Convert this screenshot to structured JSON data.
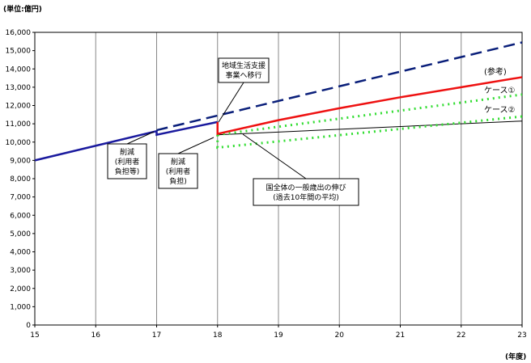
{
  "chart_data": {
    "type": "line",
    "unit_label": "(単位:億円)",
    "xunit_label": "(年度)",
    "x_ticks": [
      "15",
      "16",
      "17",
      "18",
      "19",
      "20",
      "21",
      "22",
      "23"
    ],
    "y_ticks": [
      "0",
      "1,000",
      "2,000",
      "3,000",
      "4,000",
      "5,000",
      "6,000",
      "7,000",
      "8,000",
      "9,000",
      "10,000",
      "11,000",
      "12,000",
      "13,000",
      "14,000",
      "15,000",
      "16,000"
    ],
    "ylim": [
      0,
      16000
    ],
    "xlim": [
      15,
      23
    ],
    "grid": "vertical lines at each year",
    "colors": {
      "actual": "#1a1a9e",
      "reference": "#0a1f7a",
      "sankou": "#ee1111",
      "case1": "#33dd33",
      "case2": "#33dd33",
      "general": "#000000"
    },
    "series": [
      {
        "key": "actual",
        "x": [
          15,
          17,
          17,
          18
        ],
        "y": [
          9000,
          10600,
          10400,
          11100
        ]
      },
      {
        "key": "reference",
        "x": [
          17,
          23
        ],
        "y": [
          10650,
          15450
        ]
      },
      {
        "key": "sankou",
        "name": "(参考)",
        "x": [
          18,
          18,
          19,
          20,
          21,
          22,
          23
        ],
        "y": [
          11100,
          10450,
          11200,
          11850,
          12450,
          13000,
          13550
        ]
      },
      {
        "key": "case1",
        "name": "ケース①",
        "x": [
          18,
          23
        ],
        "y": [
          10400,
          12600
        ]
      },
      {
        "key": "case2",
        "name": "ケース②",
        "x": [
          18,
          18,
          23
        ],
        "y": [
          10400,
          9700,
          11400
        ]
      },
      {
        "key": "general",
        "x": [
          18,
          23
        ],
        "y": [
          10400,
          11150
        ]
      }
    ],
    "annotations": [
      {
        "key": "cut17",
        "lines": [
          "削減",
          "(利用者",
          "負担等)"
        ]
      },
      {
        "key": "cut18",
        "lines": [
          "削減",
          "(利用者",
          "負担)"
        ]
      },
      {
        "key": "shift",
        "lines": [
          "地域生活支援",
          "事業へ移行"
        ]
      },
      {
        "key": "general_growth",
        "lines": [
          "国全体の一般歳出の伸び",
          "(過去10年間の平均)"
        ]
      }
    ]
  }
}
